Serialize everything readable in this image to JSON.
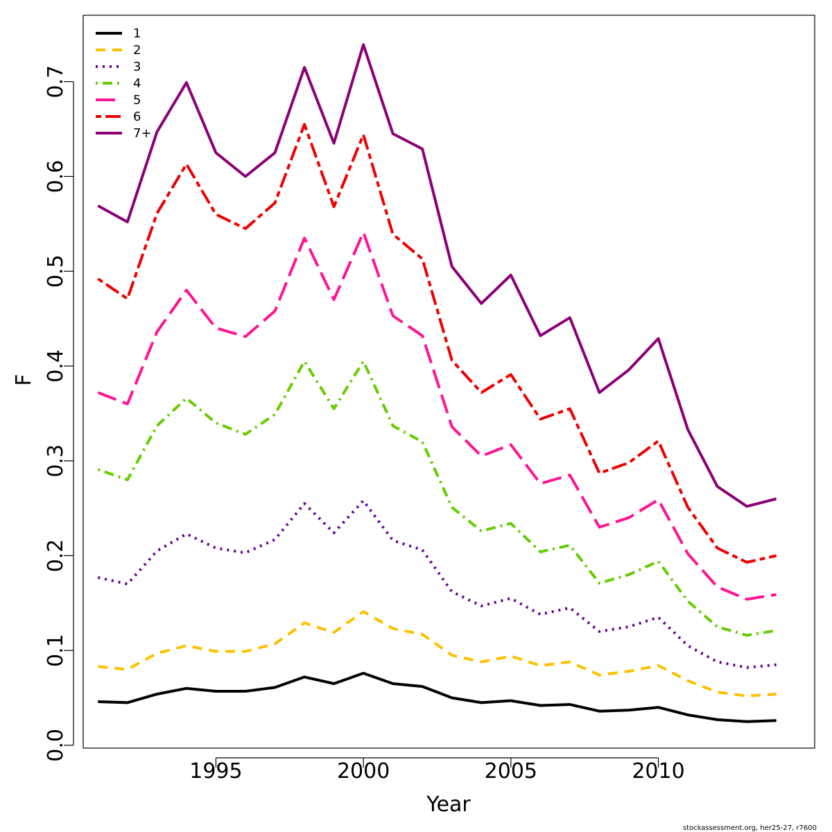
{
  "chart_data": {
    "type": "line",
    "xlabel": "Year",
    "ylabel": "F",
    "xlim": [
      1990.5,
      2015.3
    ],
    "ylim": [
      -0.003,
      0.77
    ],
    "x_ticks": [
      1995,
      2000,
      2005,
      2010
    ],
    "y_ticks": [
      0.0,
      0.1,
      0.2,
      0.3,
      0.4,
      0.5,
      0.6,
      0.7
    ],
    "y_tick_labels": [
      "0.0",
      "0.1",
      "0.2",
      "0.3",
      "0.4",
      "0.5",
      "0.6",
      "0.7"
    ],
    "legend_position": "top-left",
    "x": [
      1991,
      1992,
      1993,
      1994,
      1995,
      1996,
      1997,
      1998,
      1999,
      2000,
      2001,
      2002,
      2003,
      2004,
      2005,
      2006,
      2007,
      2008,
      2009,
      2010,
      2011,
      2012,
      2013,
      2014
    ],
    "series": [
      {
        "name": "1",
        "color": "#000000",
        "dash": "solid",
        "values": [
          0.046,
          0.045,
          0.054,
          0.06,
          0.057,
          0.057,
          0.061,
          0.072,
          0.065,
          0.076,
          0.065,
          0.062,
          0.05,
          0.045,
          0.047,
          0.042,
          0.043,
          0.036,
          0.037,
          0.04,
          0.032,
          0.027,
          0.025,
          0.026
        ]
      },
      {
        "name": "2",
        "color": "#FFC000",
        "dash": "dashed",
        "values": [
          0.083,
          0.08,
          0.097,
          0.105,
          0.099,
          0.099,
          0.107,
          0.129,
          0.119,
          0.141,
          0.123,
          0.117,
          0.095,
          0.088,
          0.094,
          0.084,
          0.088,
          0.074,
          0.078,
          0.084,
          0.068,
          0.056,
          0.052,
          0.054
        ]
      },
      {
        "name": "3",
        "color": "#660099",
        "dash": "dotted",
        "values": [
          0.177,
          0.17,
          0.205,
          0.223,
          0.208,
          0.203,
          0.217,
          0.255,
          0.224,
          0.258,
          0.216,
          0.206,
          0.162,
          0.147,
          0.155,
          0.138,
          0.145,
          0.12,
          0.125,
          0.135,
          0.105,
          0.088,
          0.082,
          0.085
        ]
      },
      {
        "name": "4",
        "color": "#66CC00",
        "dash": "dotdash",
        "values": [
          0.291,
          0.28,
          0.337,
          0.366,
          0.34,
          0.328,
          0.349,
          0.405,
          0.355,
          0.405,
          0.337,
          0.32,
          0.251,
          0.226,
          0.234,
          0.204,
          0.211,
          0.171,
          0.18,
          0.194,
          0.152,
          0.125,
          0.116,
          0.121
        ]
      },
      {
        "name": "5",
        "color": "#FF1493",
        "dash": "longdash",
        "values": [
          0.372,
          0.36,
          0.436,
          0.48,
          0.44,
          0.431,
          0.458,
          0.535,
          0.47,
          0.541,
          0.453,
          0.432,
          0.336,
          0.305,
          0.317,
          0.276,
          0.285,
          0.23,
          0.24,
          0.259,
          0.202,
          0.167,
          0.154,
          0.159
        ]
      },
      {
        "name": "6",
        "color": "#EE0000",
        "dash": "twodash",
        "values": [
          0.492,
          0.471,
          0.561,
          0.613,
          0.56,
          0.545,
          0.572,
          0.655,
          0.568,
          0.644,
          0.539,
          0.513,
          0.406,
          0.372,
          0.391,
          0.344,
          0.355,
          0.287,
          0.298,
          0.321,
          0.251,
          0.208,
          0.193,
          0.2
        ]
      },
      {
        "name": "7+",
        "color": "#8B0075",
        "dash": "solid",
        "values": [
          0.569,
          0.552,
          0.647,
          0.699,
          0.625,
          0.6,
          0.625,
          0.715,
          0.635,
          0.739,
          0.645,
          0.629,
          0.505,
          0.466,
          0.496,
          0.432,
          0.451,
          0.372,
          0.396,
          0.429,
          0.333,
          0.273,
          0.252,
          0.26
        ]
      }
    ]
  },
  "footer": "stockassessment.org, her25-27, r7600"
}
